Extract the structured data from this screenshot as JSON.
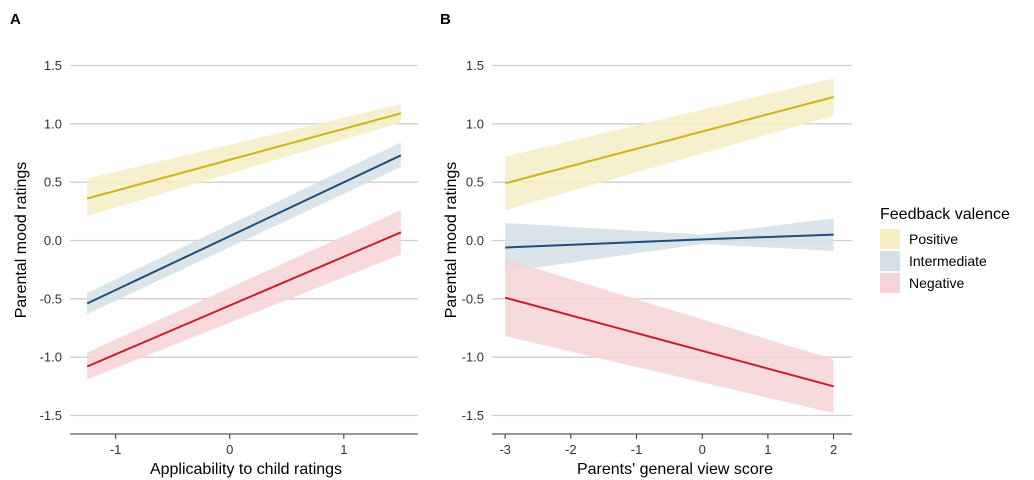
{
  "chart_data": [
    {
      "type": "line",
      "panel_label": "A",
      "xlabel": "Applicability to child ratings",
      "ylabel": "Parental mood ratings",
      "xlim": [
        -1.4,
        1.65
      ],
      "ylim": [
        -1.65,
        1.65
      ],
      "x_ticks": [
        -1,
        0,
        1
      ],
      "x_tick_labels": [
        "-1",
        "0",
        "1"
      ],
      "y_ticks": [
        -1.5,
        -1.0,
        -0.5,
        0.0,
        0.5,
        1.0,
        1.5
      ],
      "y_tick_labels": [
        "-1.5",
        "-1.0",
        "-0.5",
        "0.0",
        "0.5",
        "1.0",
        "1.5"
      ],
      "grid": "horizontal",
      "series": [
        {
          "name": "Positive",
          "color": "#d4b21e",
          "band_color": "#f5edc6",
          "x": [
            -1.25,
            1.5
          ],
          "y": [
            0.36,
            1.09
          ],
          "lower": [
            0.21,
            1.01
          ],
          "upper": [
            0.53,
            1.17
          ]
        },
        {
          "name": "Intermediate",
          "color": "#1f4e79",
          "band_color": "#d3dfe8",
          "x": [
            -1.25,
            1.5
          ],
          "y": [
            -0.54,
            0.73
          ],
          "lower": [
            -0.63,
            0.63
          ],
          "upper": [
            -0.45,
            0.84
          ]
        },
        {
          "name": "Negative",
          "color": "#c8202a",
          "band_color": "#f6d3d6",
          "x": [
            -1.25,
            1.5
          ],
          "y": [
            -1.08,
            0.07
          ],
          "lower": [
            -1.19,
            -0.12
          ],
          "upper": [
            -0.96,
            0.26
          ]
        }
      ]
    },
    {
      "type": "line",
      "panel_label": "B",
      "xlabel": "Parents' general view score",
      "ylabel": "Parental mood ratings",
      "xlim": [
        -3.2,
        2.28
      ],
      "ylim": [
        -1.65,
        1.65
      ],
      "x_ticks": [
        -3,
        -2,
        -1,
        0,
        1,
        2
      ],
      "x_tick_labels": [
        "-3",
        "-2",
        "-1",
        "0",
        "1",
        "2"
      ],
      "y_ticks": [
        -1.5,
        -1.0,
        -0.5,
        0.0,
        0.5,
        1.0,
        1.5
      ],
      "y_tick_labels": [
        "-1.5",
        "-1.0",
        "-0.5",
        "0.0",
        "0.5",
        "1.0",
        "1.5"
      ],
      "grid": "horizontal",
      "series": [
        {
          "name": "Positive",
          "color": "#d4b21e",
          "band_color": "#f5edc6",
          "x": [
            -3,
            2
          ],
          "y": [
            0.49,
            1.23
          ],
          "lower": [
            0.26,
            1.07
          ],
          "upper": [
            0.72,
            1.39
          ]
        },
        {
          "name": "Intermediate",
          "color": "#1f4e79",
          "band_color": "#d3dfe8",
          "x": [
            -3,
            0,
            2
          ],
          "y": [
            -0.06,
            0.01,
            0.05
          ],
          "lower": [
            -0.27,
            -0.03,
            -0.09
          ],
          "upper": [
            0.15,
            0.05,
            0.19
          ]
        },
        {
          "name": "Negative",
          "color": "#c8202a",
          "band_color": "#f6d3d6",
          "x": [
            -3,
            2
          ],
          "y": [
            -0.49,
            -1.25
          ],
          "lower": [
            -0.82,
            -1.48
          ],
          "upper": [
            -0.16,
            -1.02
          ]
        }
      ]
    }
  ],
  "legend": {
    "title": "Feedback valence",
    "placement": "right",
    "items": [
      {
        "label": "Positive",
        "color": "#f5edc6"
      },
      {
        "label": "Intermediate",
        "color": "#d3dfe8"
      },
      {
        "label": "Negative",
        "color": "#f6d3d6"
      }
    ]
  }
}
